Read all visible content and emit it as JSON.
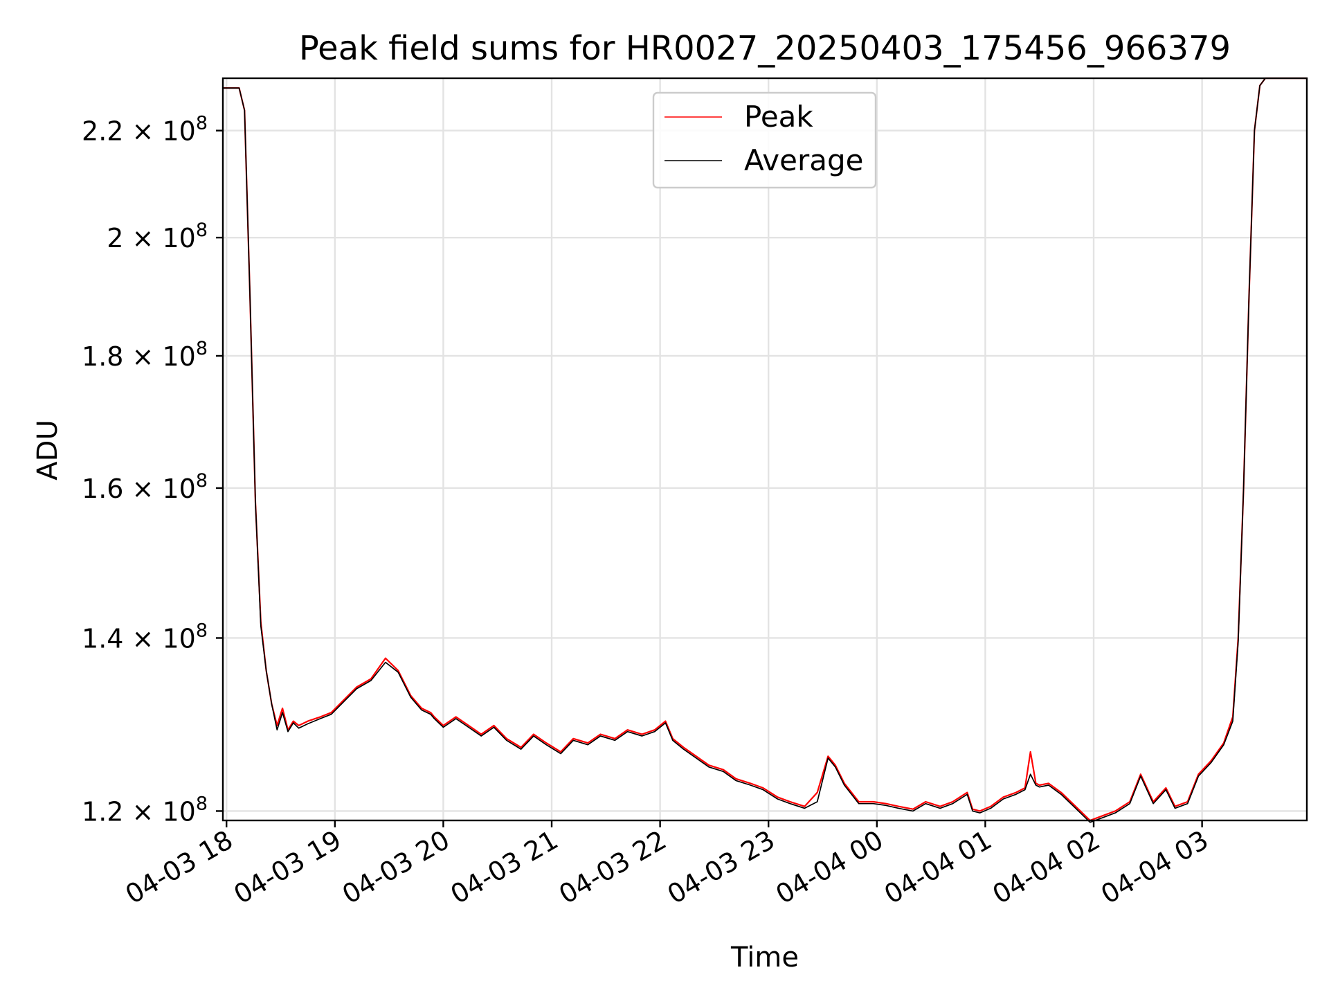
{
  "chart_data": {
    "type": "line",
    "title": "Peak field sums for HR0027_20250403_175456_966379",
    "xlabel": "Time",
    "ylabel": "ADU",
    "yscale": "log",
    "xlim": [
      "2025-04-03 17:58",
      "2025-04-04 03:58"
    ],
    "ylim": [
      119000000,
      230500000
    ],
    "grid": true,
    "legend": {
      "position": "top-center",
      "entries": [
        "Peak",
        "Average"
      ]
    },
    "colors": {
      "Peak": "#ff0000",
      "Average": "#000000"
    },
    "x_ticks": [
      {
        "value": "2025-04-03 18:00",
        "label": "04-03 18"
      },
      {
        "value": "2025-04-03 19:00",
        "label": "04-03 19"
      },
      {
        "value": "2025-04-03 20:00",
        "label": "04-03 20"
      },
      {
        "value": "2025-04-03 21:00",
        "label": "04-03 21"
      },
      {
        "value": "2025-04-03 22:00",
        "label": "04-03 22"
      },
      {
        "value": "2025-04-03 23:00",
        "label": "04-03 23"
      },
      {
        "value": "2025-04-04 00:00",
        "label": "04-04 00"
      },
      {
        "value": "2025-04-04 01:00",
        "label": "04-04 01"
      },
      {
        "value": "2025-04-04 02:00",
        "label": "04-04 02"
      },
      {
        "value": "2025-04-04 03:00",
        "label": "04-04 03"
      }
    ],
    "y_ticks": [
      {
        "value": 120000000,
        "mantissa": "1.2",
        "exp": "8"
      },
      {
        "value": 140000000,
        "mantissa": "1.4",
        "exp": "8"
      },
      {
        "value": 160000000,
        "mantissa": "1.6",
        "exp": "8"
      },
      {
        "value": 180000000,
        "mantissa": "1.8",
        "exp": "8"
      },
      {
        "value": 200000000,
        "mantissa": "2",
        "exp": "8"
      },
      {
        "value": 220000000,
        "mantissa": "2.2",
        "exp": "8"
      }
    ],
    "x": [
      "2025-04-03 17:58",
      "2025-04-03 18:07",
      "2025-04-03 18:10",
      "2025-04-03 18:13",
      "2025-04-03 18:16",
      "2025-04-03 18:19",
      "2025-04-03 18:22",
      "2025-04-03 18:25",
      "2025-04-03 18:28",
      "2025-04-03 18:31",
      "2025-04-03 18:34",
      "2025-04-03 18:37",
      "2025-04-03 18:40",
      "2025-04-03 18:45",
      "2025-04-03 18:52",
      "2025-04-03 18:58",
      "2025-04-03 19:05",
      "2025-04-03 19:12",
      "2025-04-03 19:20",
      "2025-04-03 19:28",
      "2025-04-03 19:35",
      "2025-04-03 19:42",
      "2025-04-03 19:48",
      "2025-04-03 19:53",
      "2025-04-03 19:55",
      "2025-04-03 20:00",
      "2025-04-03 20:07",
      "2025-04-03 20:14",
      "2025-04-03 20:21",
      "2025-04-03 20:28",
      "2025-04-03 20:35",
      "2025-04-03 20:43",
      "2025-04-03 20:50",
      "2025-04-03 20:57",
      "2025-04-03 21:05",
      "2025-04-03 21:12",
      "2025-04-03 21:20",
      "2025-04-03 21:27",
      "2025-04-03 21:35",
      "2025-04-03 21:42",
      "2025-04-03 21:50",
      "2025-04-03 21:57",
      "2025-04-03 22:03",
      "2025-04-03 22:07",
      "2025-04-03 22:13",
      "2025-04-03 22:20",
      "2025-04-03 22:27",
      "2025-04-03 22:35",
      "2025-04-03 22:42",
      "2025-04-03 22:50",
      "2025-04-03 22:57",
      "2025-04-03 23:05",
      "2025-04-03 23:12",
      "2025-04-03 23:20",
      "2025-04-03 23:27",
      "2025-04-03 23:33",
      "2025-04-03 23:37",
      "2025-04-03 23:42",
      "2025-04-03 23:50",
      "2025-04-03 23:58",
      "2025-04-04 00:05",
      "2025-04-04 00:12",
      "2025-04-04 00:20",
      "2025-04-04 00:27",
      "2025-04-04 00:35",
      "2025-04-04 00:42",
      "2025-04-04 00:50",
      "2025-04-04 00:53",
      "2025-04-04 00:57",
      "2025-04-04 01:03",
      "2025-04-04 01:10",
      "2025-04-04 01:17",
      "2025-04-04 01:22",
      "2025-04-04 01:25",
      "2025-04-04 01:28",
      "2025-04-04 01:30",
      "2025-04-04 01:35",
      "2025-04-04 01:42",
      "2025-04-04 01:50",
      "2025-04-04 01:58",
      "2025-04-04 02:05",
      "2025-04-04 02:12",
      "2025-04-04 02:20",
      "2025-04-04 02:26",
      "2025-04-04 02:33",
      "2025-04-04 02:40",
      "2025-04-04 02:45",
      "2025-04-04 02:52",
      "2025-04-04 02:58",
      "2025-04-04 03:05",
      "2025-04-04 03:12",
      "2025-04-04 03:17",
      "2025-04-04 03:20",
      "2025-04-04 03:23",
      "2025-04-04 03:26",
      "2025-04-04 03:29",
      "2025-04-04 03:32",
      "2025-04-04 03:35",
      "2025-04-04 03:38",
      "2025-04-04 03:41",
      "2025-04-04 03:44",
      "2025-04-04 03:58"
    ],
    "series": [
      {
        "name": "Peak",
        "values": [
          228500000,
          228500000,
          224000000,
          190000000,
          158000000,
          142000000,
          136000000,
          132000000,
          129500000,
          131500000,
          129000000,
          130000000,
          129500000,
          130000000,
          130500000,
          131000000,
          132500000,
          134000000,
          135000000,
          137500000,
          136000000,
          133000000,
          131500000,
          131000000,
          130500000,
          129500000,
          130500000,
          129500000,
          128500000,
          129500000,
          128000000,
          127000000,
          128500000,
          127500000,
          126500000,
          128000000,
          127500000,
          128500000,
          128000000,
          129000000,
          128500000,
          129000000,
          130000000,
          128000000,
          127000000,
          126000000,
          125000000,
          124500000,
          123500000,
          123000000,
          122500000,
          121500000,
          121000000,
          120500000,
          122000000,
          126000000,
          125000000,
          123000000,
          121000000,
          121000000,
          120800000,
          120500000,
          120200000,
          121000000,
          120500000,
          121000000,
          122000000,
          120200000,
          120000000,
          120500000,
          121500000,
          122000000,
          122500000,
          126500000,
          123000000,
          122800000,
          123000000,
          122000000,
          120500000,
          119000000,
          119500000,
          120000000,
          121000000,
          124000000,
          121000000,
          122500000,
          120500000,
          121000000,
          124000000,
          125500000,
          127500000,
          130500000,
          140000000,
          160000000,
          190000000,
          220000000,
          229000000,
          230500000,
          230500000,
          230500000,
          230500000,
          230500000
        ]
      },
      {
        "name": "Average",
        "values": [
          228500000,
          228500000,
          224000000,
          190000000,
          158000000,
          141500000,
          136000000,
          132000000,
          129000000,
          131000000,
          128800000,
          129800000,
          129200000,
          129700000,
          130300000,
          130800000,
          132300000,
          133800000,
          134800000,
          137000000,
          135800000,
          132800000,
          131300000,
          130800000,
          130300000,
          129300000,
          130300000,
          129300000,
          128300000,
          129300000,
          127800000,
          126800000,
          128300000,
          127300000,
          126300000,
          127800000,
          127300000,
          128300000,
          127800000,
          128800000,
          128300000,
          128800000,
          129800000,
          127800000,
          126800000,
          125800000,
          124800000,
          124300000,
          123300000,
          122800000,
          122300000,
          121300000,
          120800000,
          120300000,
          121000000,
          125800000,
          124800000,
          122800000,
          120800000,
          120800000,
          120600000,
          120300000,
          120000000,
          120800000,
          120300000,
          120800000,
          121800000,
          120000000,
          119800000,
          120300000,
          121300000,
          121800000,
          122300000,
          124000000,
          122800000,
          122600000,
          122800000,
          121800000,
          120300000,
          118800000,
          119300000,
          119800000,
          120800000,
          123800000,
          120800000,
          122300000,
          120300000,
          120800000,
          123800000,
          125300000,
          127300000,
          130000000,
          139500000,
          160000000,
          190000000,
          220000000,
          229000000,
          230500000,
          230500000,
          230500000,
          230500000,
          230500000
        ]
      }
    ]
  }
}
